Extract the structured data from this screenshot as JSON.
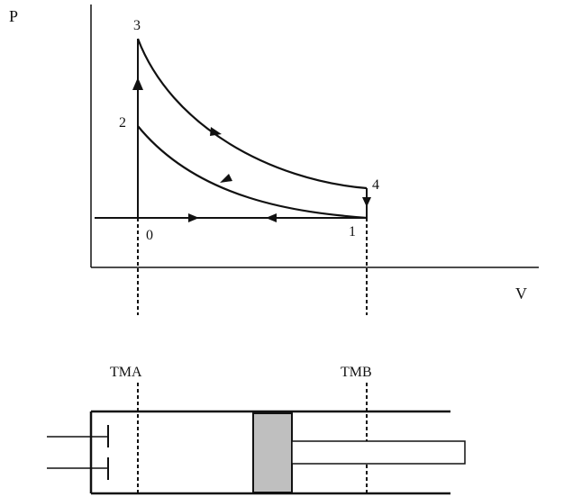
{
  "diagram": {
    "axes": {
      "y_label": "P",
      "x_label": "V"
    },
    "points": [
      {
        "id": "p0",
        "label": "0"
      },
      {
        "id": "p1",
        "label": "1"
      },
      {
        "id": "p2",
        "label": "2"
      },
      {
        "id": "p3",
        "label": "3"
      },
      {
        "id": "p4",
        "label": "4"
      }
    ],
    "cylinder": {
      "tma_label": "TMA",
      "tmb_label": "TMB"
    },
    "colors": {
      "line": "#111111",
      "piston_fill": "#bfbfbf"
    }
  }
}
